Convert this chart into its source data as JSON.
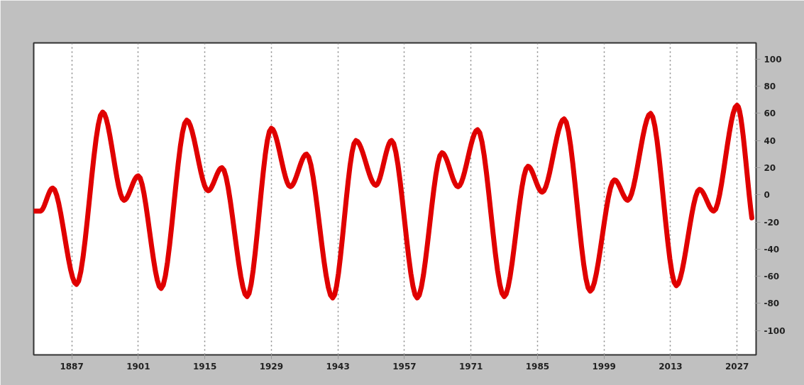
{
  "chart_data": {
    "type": "line",
    "x": [
      1879,
      1880.4,
      1883,
      1888,
      1893.5,
      1898,
      1901,
      1905.8,
      1911.2,
      1915.7,
      1918.6,
      1923.9,
      1929,
      1933,
      1936.4,
      1941.9,
      1946.8,
      1951,
      1954.3,
      1959.7,
      1964.9,
      1968.3,
      1972.4,
      1978,
      1983,
      1986,
      1990.6,
      1996.1,
      2001.2,
      2004,
      2008.8,
      2014.2,
      2019.1,
      2022.1,
      2027,
      2030.1
    ],
    "series": [
      {
        "color": "#e00000",
        "values": [
          -12,
          -12,
          5,
          -66,
          61,
          -4,
          14,
          -69,
          55,
          3,
          20,
          -75,
          49,
          6,
          30,
          -76,
          40,
          7,
          40,
          -76,
          31,
          6,
          48,
          -75,
          21,
          2,
          56,
          -71,
          11,
          -4,
          60,
          -67,
          4,
          -12,
          66,
          -17
        ]
      }
    ],
    "xlim": [
      1879,
      2031
    ],
    "ylim": [
      -118,
      112
    ],
    "xticks": [
      1887,
      1901,
      1915,
      1929,
      1943,
      1957,
      1971,
      1985,
      1999,
      2013,
      2027
    ],
    "yticks": [
      -100,
      -80,
      -60,
      -40,
      -20,
      0,
      20,
      40,
      60,
      80,
      100
    ],
    "grid": "x",
    "marker": "none",
    "line_style": "solid"
  }
}
